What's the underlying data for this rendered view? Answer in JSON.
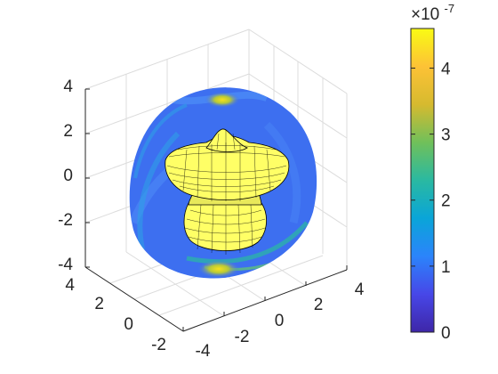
{
  "chart_data": {
    "type": "surface3d",
    "title": "",
    "xlabel": "",
    "ylabel": "",
    "zlabel": "",
    "axes": {
      "x_ticks": [
        "-4",
        "-2",
        "0",
        "2",
        "4"
      ],
      "y_ticks": [
        "4",
        "2",
        "0",
        "-2"
      ],
      "z_ticks": [
        "4",
        "2",
        "0",
        "-2",
        "-4"
      ],
      "xlim": [
        -4,
        4
      ],
      "ylim": [
        -3,
        4
      ],
      "zlim": [
        -4,
        4
      ],
      "grid": true
    },
    "surfaces": [
      {
        "kind": "cut-sphere-slice",
        "radius": 4,
        "colormap": "parula",
        "value_range": [
          0,
          4.6e-07
        ]
      },
      {
        "kind": "radiation-pattern",
        "color": "#ffff66",
        "edgecolor": "#000000",
        "z_range": [
          -2,
          2
        ]
      }
    ],
    "colorbar": {
      "colormap": "parula",
      "ticks": [
        "0",
        "1",
        "2",
        "3",
        "4"
      ],
      "range": [
        0,
        4.6
      ],
      "exponent_base": "×10",
      "exponent_power": "-7",
      "location": "right"
    }
  },
  "colors": {
    "axis": "#262626",
    "grid": "#dcdcdc",
    "disc_base": "#3d6ff0",
    "surface": "#ffff66",
    "colormap_stops": [
      "#3e26a8",
      "#4747e8",
      "#2b84fb",
      "#0aa5d8",
      "#2ab9a1",
      "#70c05a",
      "#d6ba2f",
      "#fdc236",
      "#f9fb14"
    ]
  }
}
